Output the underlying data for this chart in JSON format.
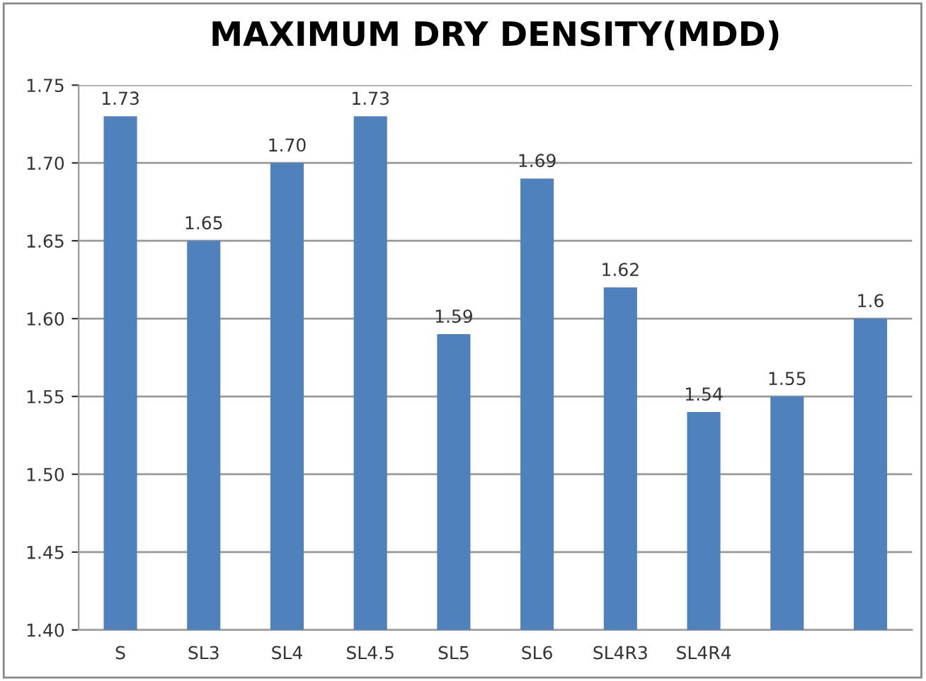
{
  "chart_data": {
    "type": "bar",
    "title": "MAXIMUM DRY DENSITY(MDD)",
    "categories": [
      "S",
      "SL3",
      "SL4",
      "SL4.5",
      "SL5",
      "SL6",
      "SL4R3",
      "SL4R4",
      null,
      null
    ],
    "values": [
      1.73,
      1.65,
      1.7,
      1.73,
      1.59,
      1.69,
      1.62,
      1.54,
      1.55,
      1.6
    ],
    "value_labels": [
      "1.73",
      "1.65",
      "1.70",
      "1.73",
      "1.59",
      "1.69",
      "1.62",
      "1.54",
      "1.55",
      "1.6"
    ],
    "color": "#4f81bd",
    "ylim": [
      1.4,
      1.75
    ],
    "yticks": [
      {
        "value": 1.4,
        "label": "1.40"
      },
      {
        "value": 1.45,
        "label": "1.45"
      },
      {
        "value": 1.5,
        "label": "1.50"
      },
      {
        "value": 1.55,
        "label": "1.55"
      },
      {
        "value": 1.6,
        "label": "1.60"
      },
      {
        "value": 1.65,
        "label": "1.65"
      },
      {
        "value": 1.7,
        "label": "1.70"
      },
      {
        "value": 1.75,
        "label": "1.75"
      }
    ],
    "grid": "y",
    "legend": false
  }
}
